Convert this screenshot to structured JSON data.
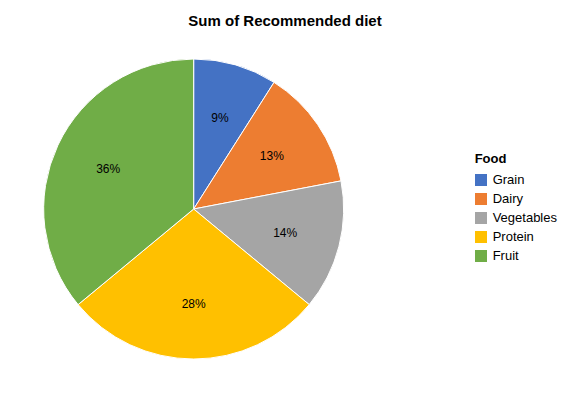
{
  "chart_data": {
    "type": "pie",
    "title": "Sum of Recommended diet",
    "legend_title": "Food",
    "categories": [
      "Grain",
      "Dairy",
      "Vegetables",
      "Protein",
      "Fruit"
    ],
    "values": [
      9,
      13,
      14,
      28,
      36
    ],
    "value_labels": [
      "9%",
      "13%",
      "14%",
      "28%",
      "36%"
    ],
    "colors": [
      "#4472C4",
      "#ED7D31",
      "#A5A5A5",
      "#FFC000",
      "#70AD47"
    ],
    "data_labels": true,
    "legend": "right"
  }
}
